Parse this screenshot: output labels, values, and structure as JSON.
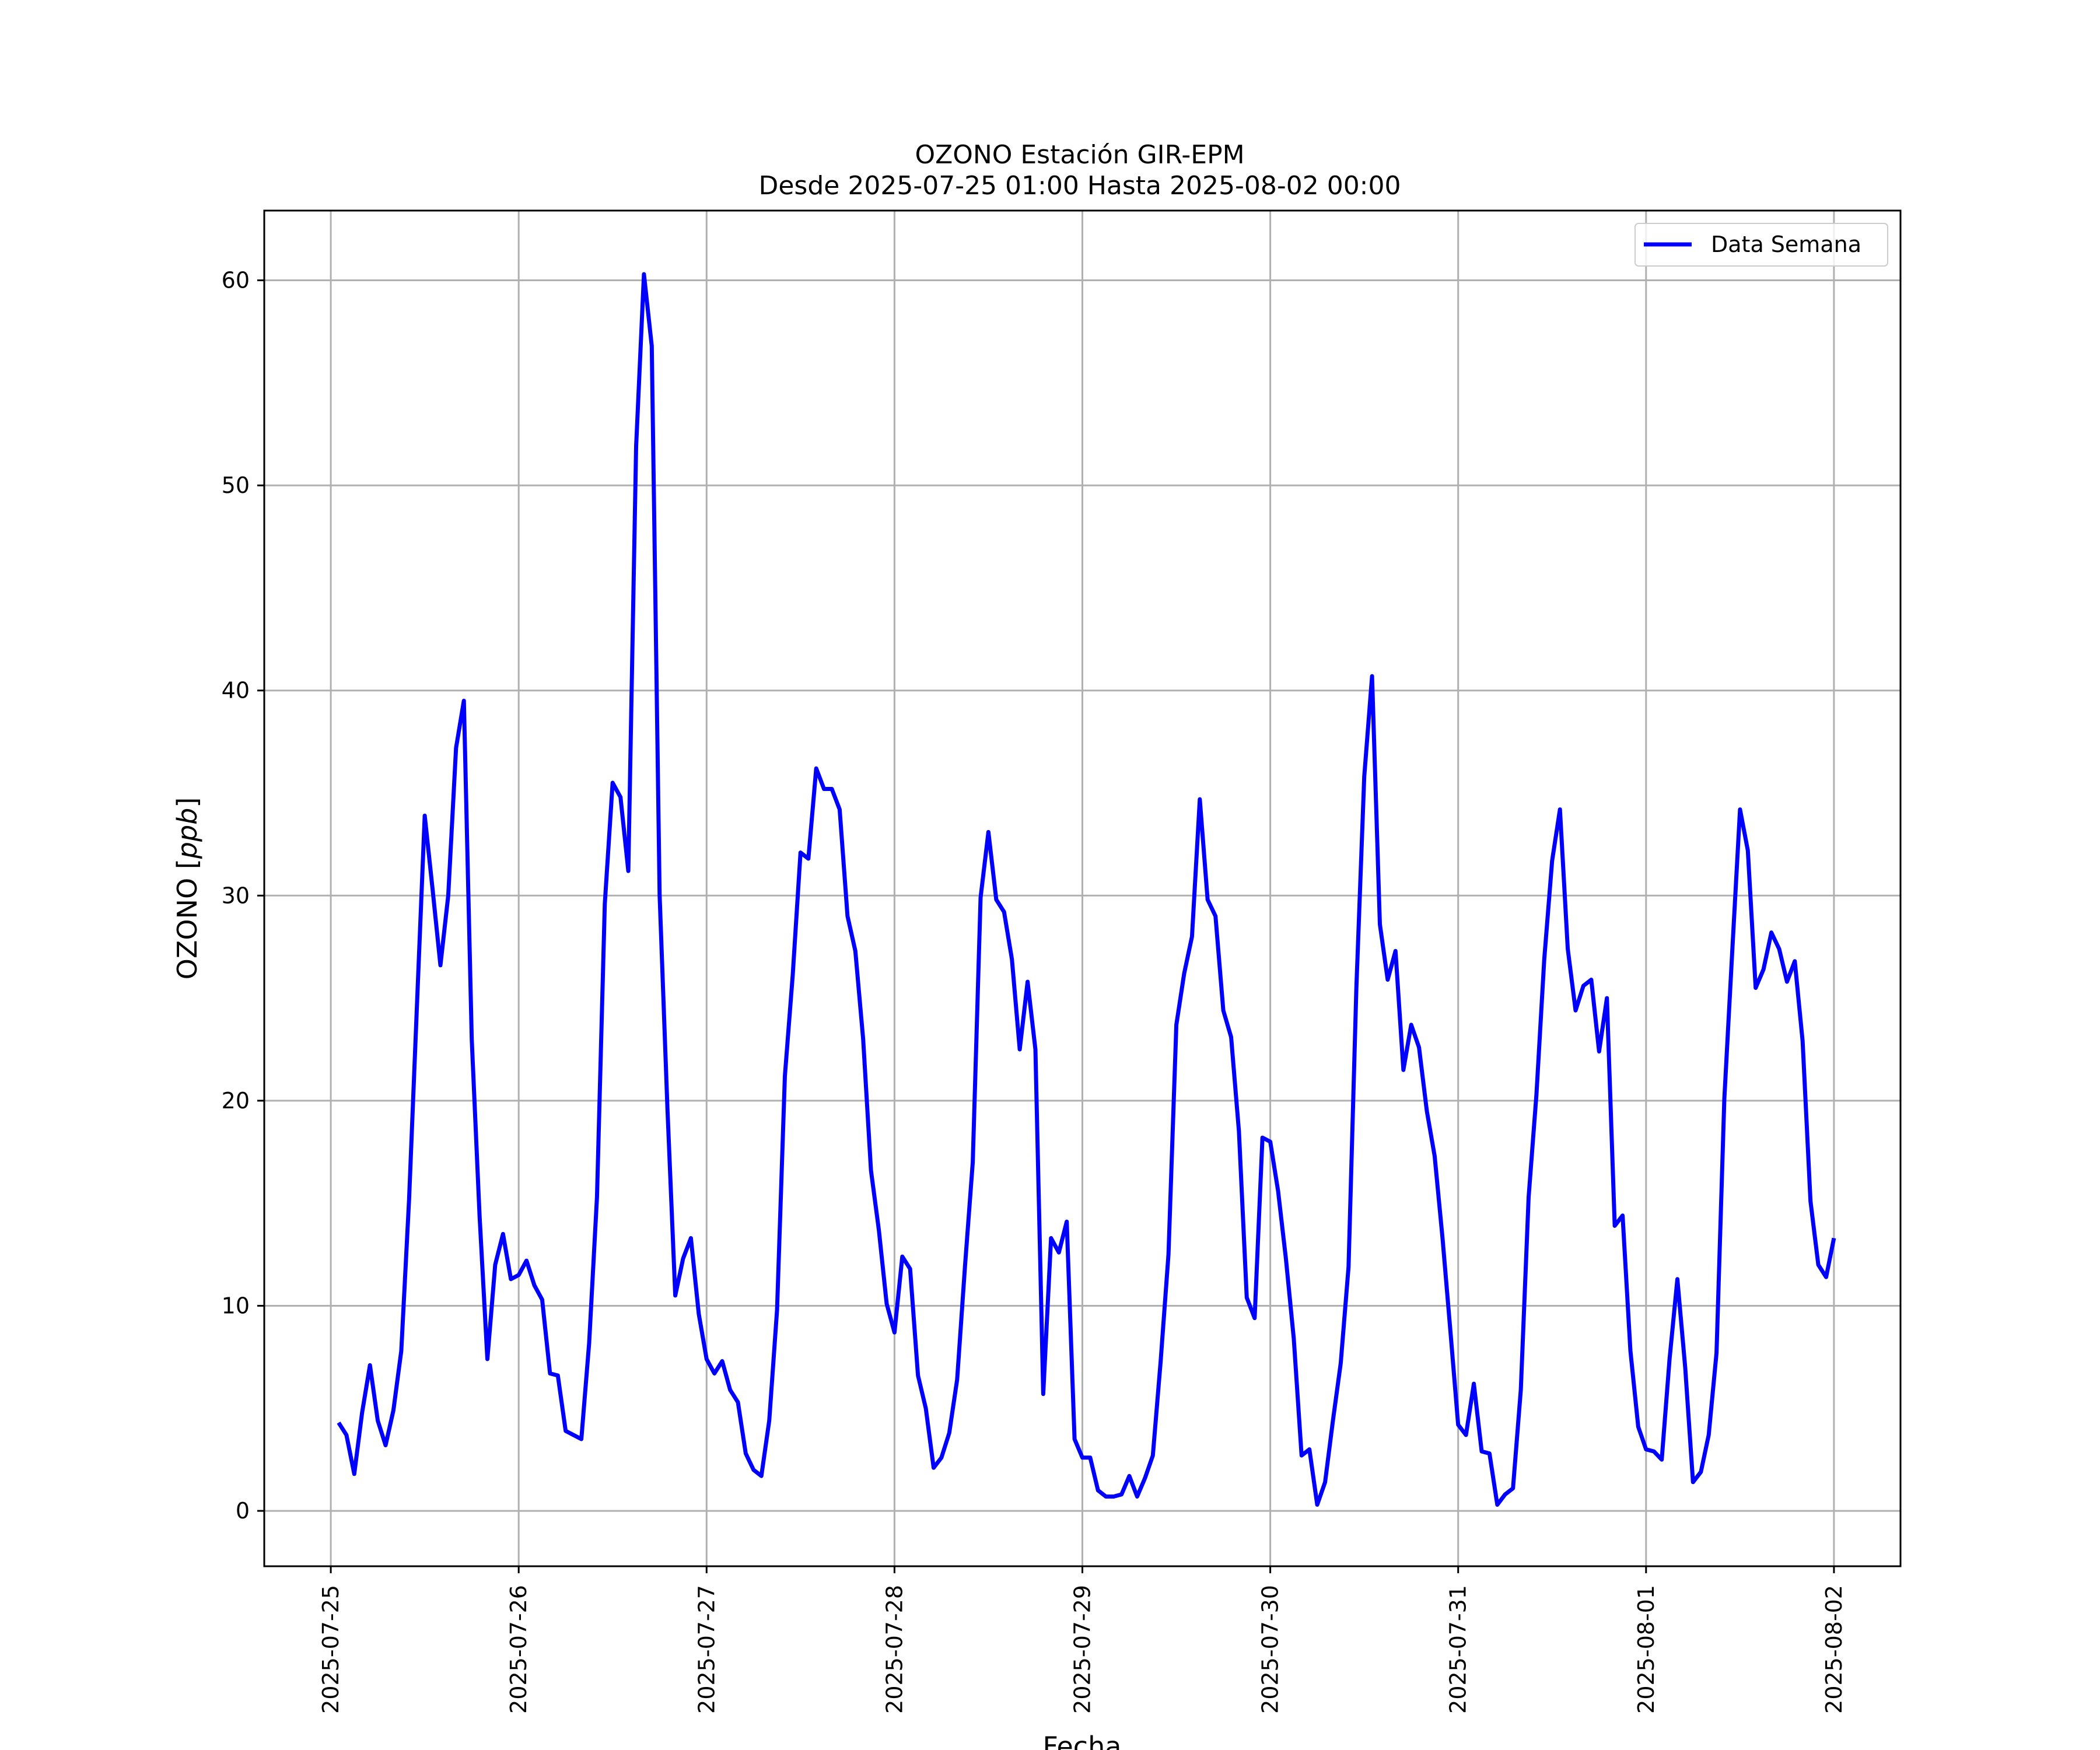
{
  "chart_data": {
    "type": "line",
    "title": "OZONO Estación GIR-EPM",
    "subtitle": "Desde 2025-07-25 01:00 Hasta 2025-08-02 00:00",
    "xlabel": "Fecha",
    "ylabel": "OZONO [ppb]",
    "ylabel_main": "OZONO ",
    "ylabel_unit": "ppb",
    "xlim": [
      "2025-07-24 15:30",
      "2025-08-02 08:30"
    ],
    "ylim": [
      -2.7,
      63.4
    ],
    "x_ticks": [
      "2025-07-25",
      "2025-07-26",
      "2025-07-27",
      "2025-07-28",
      "2025-07-29",
      "2025-07-30",
      "2025-07-31",
      "2025-08-01",
      "2025-08-02"
    ],
    "y_ticks": [
      0,
      10,
      20,
      30,
      40,
      50,
      60
    ],
    "y_tick_labels": [
      "0",
      "10",
      "20",
      "30",
      "40",
      "50",
      "60"
    ],
    "grid": true,
    "legend_position": "top-right",
    "colors": {
      "series": "#0000ff",
      "grid": "#b0b0b0",
      "axes": "#000000"
    },
    "series": [
      {
        "name": "Data Semana",
        "x_start": "2025-07-25 01:00",
        "x_step_hours": 1,
        "values": [
          4.3,
          3.7,
          1.8,
          4.8,
          7.1,
          4.4,
          3.2,
          4.9,
          7.8,
          15.2,
          24.6,
          33.9,
          30.3,
          26.6,
          30.0,
          37.2,
          39.5,
          23.0,
          14.4,
          7.4,
          12.0,
          13.5,
          11.3,
          11.5,
          12.2,
          11.0,
          10.3,
          6.7,
          6.6,
          3.9,
          3.7,
          3.5,
          8.2,
          15.3,
          29.6,
          35.5,
          34.8,
          31.2,
          51.9,
          60.3,
          56.8,
          30.0,
          19.6,
          10.5,
          12.3,
          13.3,
          9.6,
          7.4,
          6.7,
          7.3,
          5.9,
          5.3,
          2.8,
          2.0,
          1.7,
          4.4,
          9.8,
          21.2,
          26.1,
          32.1,
          31.8,
          36.2,
          35.2,
          35.2,
          34.2,
          29.0,
          27.3,
          23.0,
          16.6,
          13.7,
          10.1,
          8.7,
          12.4,
          11.8,
          6.6,
          5.0,
          2.1,
          2.6,
          3.8,
          6.4,
          11.9,
          17.0,
          29.9,
          33.1,
          29.8,
          29.2,
          26.9,
          22.5,
          25.8,
          22.5,
          5.7,
          13.3,
          12.6,
          14.1,
          3.5,
          2.6,
          2.6,
          1.0,
          0.7,
          0.7,
          0.8,
          1.7,
          0.7,
          1.6,
          2.7,
          7.3,
          12.5,
          23.7,
          26.2,
          28.0,
          34.7,
          29.8,
          29.0,
          24.4,
          23.1,
          18.5,
          10.4,
          9.4,
          18.2,
          18.0,
          15.6,
          12.3,
          8.4,
          2.7,
          3.0,
          0.3,
          1.4,
          4.4,
          7.2,
          11.9,
          25.5,
          35.8,
          40.7,
          28.6,
          25.9,
          27.3,
          21.5,
          23.7,
          22.6,
          19.5,
          17.3,
          13.3,
          8.8,
          4.2,
          3.7,
          6.2,
          2.9,
          2.8,
          0.3,
          0.8,
          1.1,
          5.9,
          15.3,
          20.3,
          26.9,
          31.7,
          34.2,
          27.4,
          24.4,
          25.6,
          25.9,
          22.4,
          25.0,
          13.9,
          14.4,
          7.8,
          4.1,
          3.0,
          2.9,
          2.5,
          7.4,
          11.3,
          7.0,
          1.4,
          1.9,
          3.7,
          7.7,
          20.1,
          27.2,
          34.2,
          32.2,
          25.5,
          26.4,
          28.2,
          27.4,
          25.8,
          26.8,
          22.9,
          15.1,
          12.0,
          11.4,
          13.3
        ]
      }
    ]
  }
}
